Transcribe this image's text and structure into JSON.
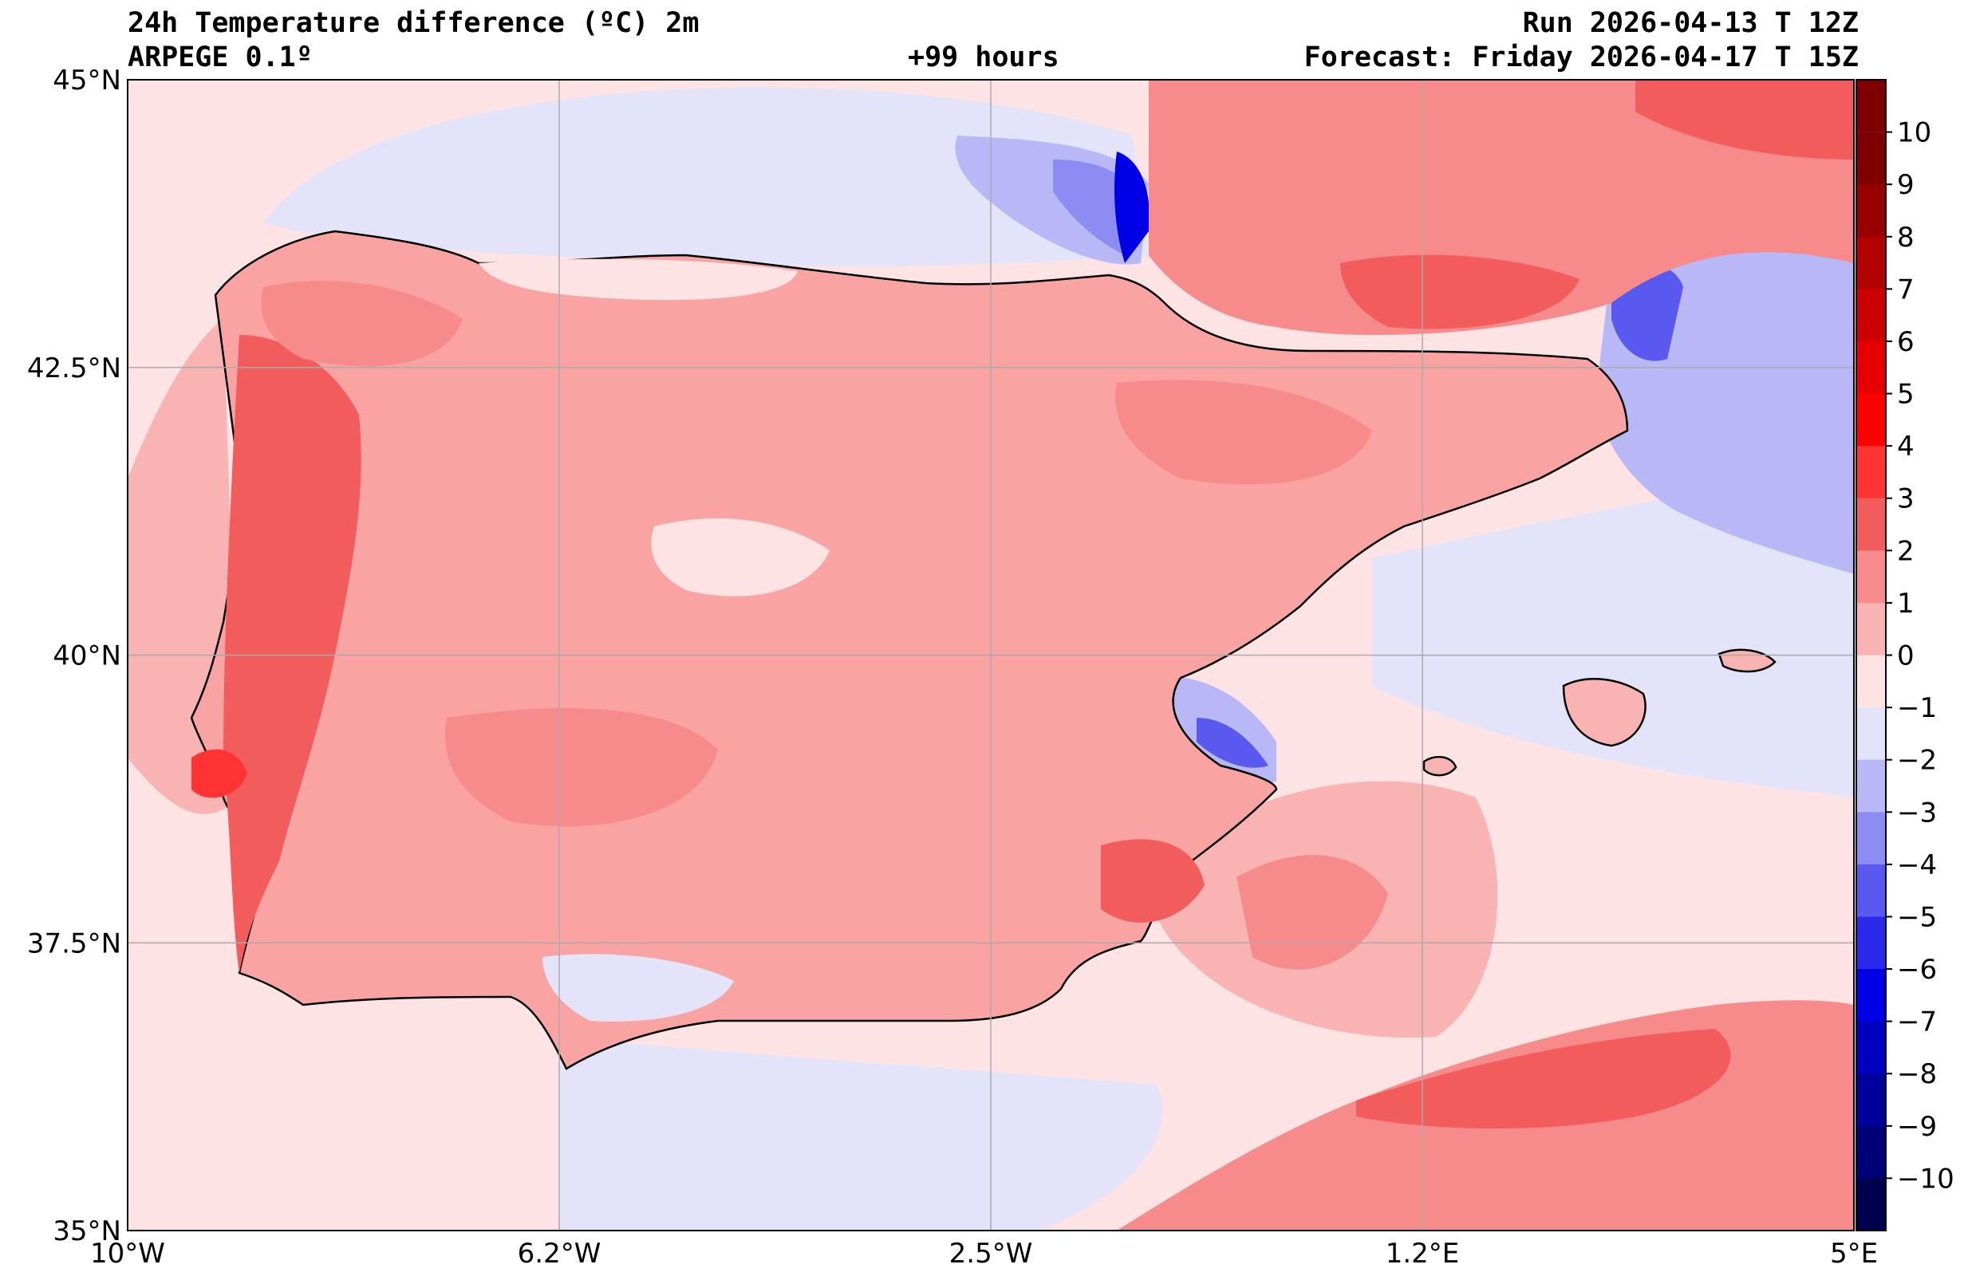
{
  "header": {
    "title_line1": "24h Temperature difference (ºC) 2m",
    "model": "ARPEGE 0.1º",
    "lead_time": "+99 hours",
    "run": "Run 2026-04-13 T 12Z",
    "forecast": "Forecast: Friday 2026-04-17 T 15Z"
  },
  "map": {
    "region": "Iberian Peninsula",
    "lat_range": [
      35,
      45
    ],
    "lon_range": [
      -10,
      5
    ],
    "lat_ticks": [
      {
        "value": 45,
        "label": "45°N"
      },
      {
        "value": 42.5,
        "label": "42.5°N"
      },
      {
        "value": 40,
        "label": "40°N"
      },
      {
        "value": 37.5,
        "label": "37.5°N"
      },
      {
        "value": 35,
        "label": "35°N"
      }
    ],
    "lon_ticks": [
      {
        "value": -10,
        "label": "10°W"
      },
      {
        "value": -6.25,
        "label": "6.2°W"
      },
      {
        "value": -2.5,
        "label": "2.5°W"
      },
      {
        "value": 1.25,
        "label": "1.2°E"
      },
      {
        "value": 5,
        "label": "5°E"
      }
    ],
    "features": {
      "sea_background": "#fde3e3",
      "land_fill": "#f9a3a3",
      "coastline_color": "#000000",
      "grid_color": "#aaaaaa"
    }
  },
  "colorbar": {
    "levels": [
      {
        "value": 10,
        "label": "10",
        "color": "#7f0000"
      },
      {
        "value": 9,
        "label": "9",
        "color": "#990000"
      },
      {
        "value": 8,
        "label": "8",
        "color": "#b30000"
      },
      {
        "value": 7,
        "label": "7",
        "color": "#cc0000"
      },
      {
        "value": 6,
        "label": "6",
        "color": "#e60000"
      },
      {
        "value": 5,
        "label": "5",
        "color": "#ff0000"
      },
      {
        "value": 4,
        "label": "4",
        "color": "#ff3333"
      },
      {
        "value": 3,
        "label": "3",
        "color": "#f25c5c"
      },
      {
        "value": 2,
        "label": "2",
        "color": "#f78a8a"
      },
      {
        "value": 1,
        "label": "1",
        "color": "#f9b3b3"
      },
      {
        "value": 0,
        "label": "0",
        "color": "#fde3e3"
      },
      {
        "value": -1,
        "label": "−1",
        "color": "#e3e3fa"
      },
      {
        "value": -2,
        "label": "−2",
        "color": "#b8b8f7"
      },
      {
        "value": -3,
        "label": "−3",
        "color": "#8c8cf2"
      },
      {
        "value": -4,
        "label": "−4",
        "color": "#5959ef"
      },
      {
        "value": -5,
        "label": "−5",
        "color": "#2a2aed"
      },
      {
        "value": -6,
        "label": "−6",
        "color": "#0000e6"
      },
      {
        "value": -7,
        "label": "−7",
        "color": "#0000c0"
      },
      {
        "value": -8,
        "label": "−8",
        "color": "#00009a"
      },
      {
        "value": -9,
        "label": "−9",
        "color": "#000078"
      },
      {
        "value": -10,
        "label": "−10",
        "color": "#00004f"
      }
    ]
  }
}
